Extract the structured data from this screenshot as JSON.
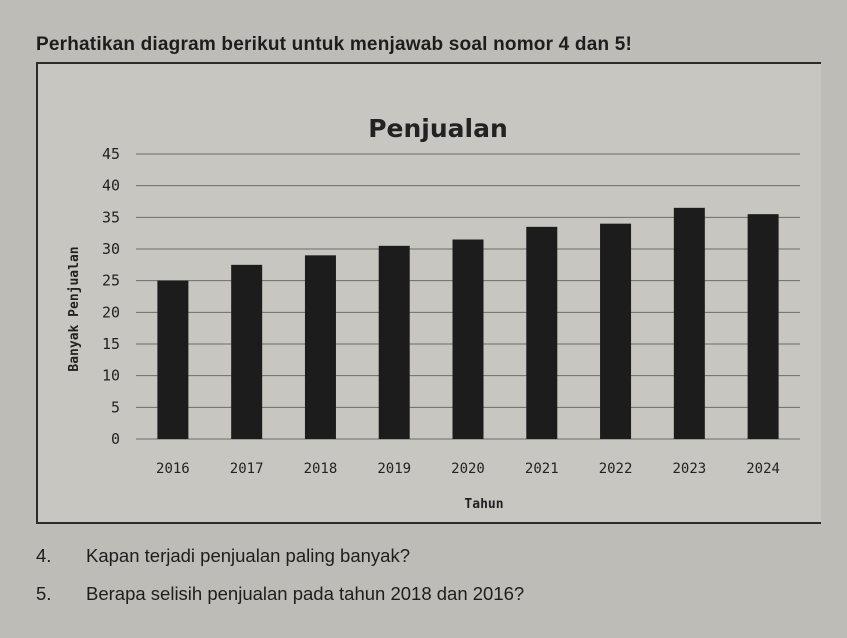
{
  "instruction": "Perhatikan diagram berikut untuk menjawab soal nomor 4 dan 5!",
  "chart_data": {
    "type": "bar",
    "title": "Penjualan",
    "xlabel": "Tahun",
    "ylabel": "Banyak Penjualan",
    "categories": [
      "2016",
      "2017",
      "2018",
      "2019",
      "2020",
      "2021",
      "2022",
      "2023",
      "2024"
    ],
    "values": [
      25,
      27.5,
      29,
      30.5,
      31.5,
      33.5,
      34,
      36.5,
      35.5
    ],
    "ylim": [
      0,
      45
    ],
    "yticks": [
      0,
      5,
      10,
      15,
      20,
      25,
      30,
      35,
      40,
      45
    ],
    "grid": true,
    "bar_color": "#1c1c1c"
  },
  "questions": [
    {
      "number": "4.",
      "text": "Kapan terjadi penjualan paling banyak?"
    },
    {
      "number": "5.",
      "text": "Berapa selisih penjualan pada tahun 2018 dan 2016?"
    }
  ]
}
